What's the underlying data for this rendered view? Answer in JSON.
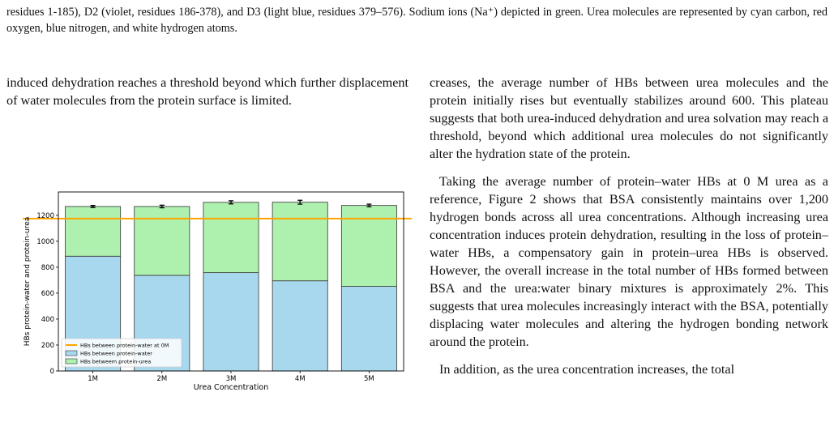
{
  "caption": "residues 1-185), D2 (violet, residues 186-378), and D3 (light blue, residues 379–576). Sodium ions (Na⁺) depicted in green. Urea molecules are represented by cyan carbon, red oxygen, blue nitrogen, and white hydrogen atoms.",
  "left_paragraph": "induced dehydration reaches a threshold beyond which further displacement of water molecules from the protein surface is limited.",
  "right_paragraphs": [
    "creases, the average number of HBs between urea molecules and the protein initially rises but eventually stabilizes around 600. This plateau suggests that both urea-induced dehydration and urea solvation may reach a threshold, beyond which additional urea molecules do not significantly alter the hydration state of the protein.",
    "Taking the average number of protein–water HBs at 0 M urea as a reference, Figure 2 shows that BSA consistently maintains over 1,200 hydrogen bonds across all urea concentrations. Although increasing urea concentration induces protein dehydration, resulting in the loss of protein–water HBs, a compensatory gain in protein–urea HBs is observed. However, the overall increase in the total number of HBs formed between BSA and the urea:water binary mixtures is approximately 2%. This suggests that urea molecules increasingly interact with the BSA, potentially displacing water molecules and altering the hydrogen bonding network around the protein.",
    "In addition, as the urea concentration increases, the total"
  ],
  "colors": {
    "water": "#a8d8ee",
    "urea": "#aef0ae",
    "reference": "#ffa500",
    "edge": "#333333"
  },
  "chart_data": {
    "type": "bar",
    "stacked": true,
    "categories": [
      "1M",
      "2M",
      "3M",
      "4M",
      "5M"
    ],
    "series": [
      {
        "name": "HBs between protein-water",
        "values": [
          885,
          737,
          758,
          695,
          652
        ]
      },
      {
        "name": "HBs betweem protein-urea",
        "values": [
          383,
          531,
          542,
          606,
          624
        ]
      }
    ],
    "error": [
      8,
      10,
      12,
      15,
      10
    ],
    "reference_line": {
      "name": "HBs between protein-water at 0M",
      "value": 1175
    },
    "xlabel": "Urea Concentration",
    "ylabel": "HBs protein-water and protein-urea",
    "ylim": [
      0,
      1380
    ],
    "yticks": [
      0,
      200,
      400,
      600,
      800,
      1000,
      1200
    ],
    "legend_position": "lower-left",
    "grid": false
  }
}
